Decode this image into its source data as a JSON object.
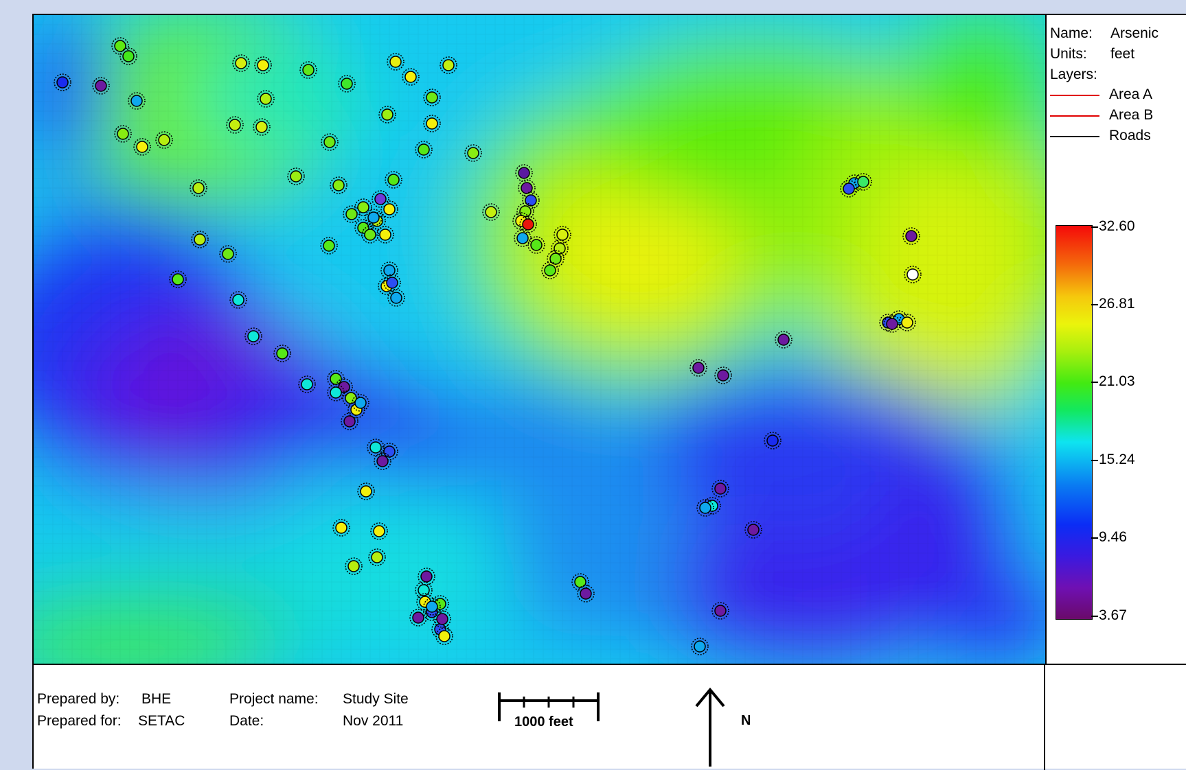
{
  "legend": {
    "name_key": "Name:",
    "name_value": "Arsenic",
    "units_key": "Units:",
    "units_value": "feet",
    "layers_key": "Layers:",
    "layers": [
      {
        "label": "Area A",
        "color": "#e00000"
      },
      {
        "label": "Area B",
        "color": "#e00000"
      },
      {
        "label": "Roads",
        "color": "#000000"
      }
    ],
    "scale_ticks": [
      "32.60",
      "26.81",
      "21.03",
      "15.24",
      "9.46",
      "3.67"
    ],
    "scale_min": 3.67,
    "scale_max": 32.6
  },
  "footer": {
    "prepared_by_key": "Prepared by:",
    "prepared_by_value": "BHE",
    "prepared_for_key": "Prepared for:",
    "prepared_for_value": "SETAC",
    "project_key": "Project name:",
    "project_value": "Study Site",
    "date_key": "Date:",
    "date_value": "Nov 2011",
    "scale_label": "1000 feet",
    "north_label": "N"
  },
  "colors": {
    "background": "#cfd9ee",
    "sample_outline": "#000000"
  }
}
